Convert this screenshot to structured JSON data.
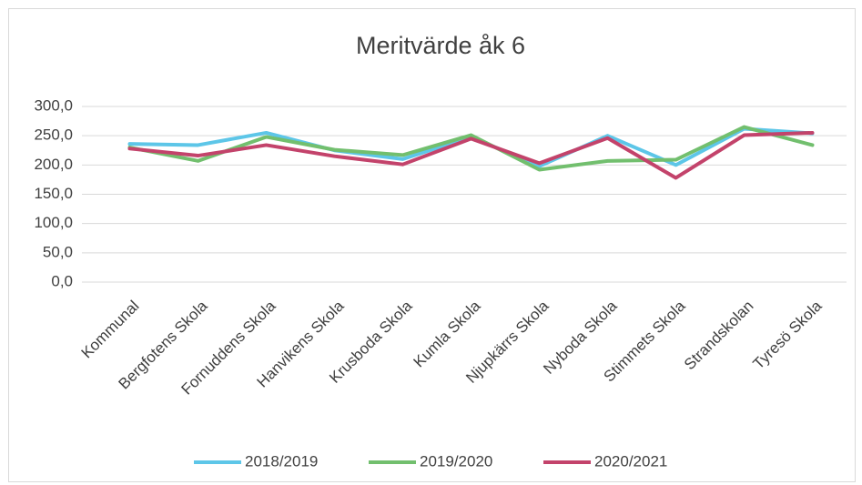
{
  "chart_data": {
    "type": "line",
    "title": "Meritvärde åk 6",
    "categories": [
      "Kommunal",
      "Bergfotens Skola",
      "Fornuddens Skola",
      "Hanvikens Skola",
      "Krusboda Skola",
      "Kumla Skola",
      "Njupkärrs Skola",
      "Nyboda Skola",
      "Stimmets Skola",
      "Strandskolan",
      "Tyresö Skola"
    ],
    "series": [
      {
        "name": "2018/2019",
        "color": "#5dc6e8",
        "values": [
          236,
          234,
          255,
          225,
          210,
          248,
          198,
          250,
          200,
          262,
          254
        ]
      },
      {
        "name": "2019/2020",
        "color": "#72bf6e",
        "values": [
          230,
          207,
          248,
          226,
          217,
          251,
          192,
          207,
          209,
          265,
          234
        ]
      },
      {
        "name": "2020/2021",
        "color": "#c3436b",
        "values": [
          228,
          216,
          234,
          215,
          201,
          245,
          203,
          246,
          178,
          251,
          255
        ]
      }
    ],
    "ylim": [
      0,
      300
    ],
    "yticks": [
      {
        "value": 0,
        "label": "0,0"
      },
      {
        "value": 50,
        "label": "50,0"
      },
      {
        "value": 100,
        "label": "100,0"
      },
      {
        "value": 150,
        "label": "150,0"
      },
      {
        "value": 200,
        "label": "200,0"
      },
      {
        "value": 250,
        "label": "250,0"
      },
      {
        "value": 300,
        "label": "300,0"
      }
    ],
    "grid": true,
    "legend": "bottom"
  }
}
